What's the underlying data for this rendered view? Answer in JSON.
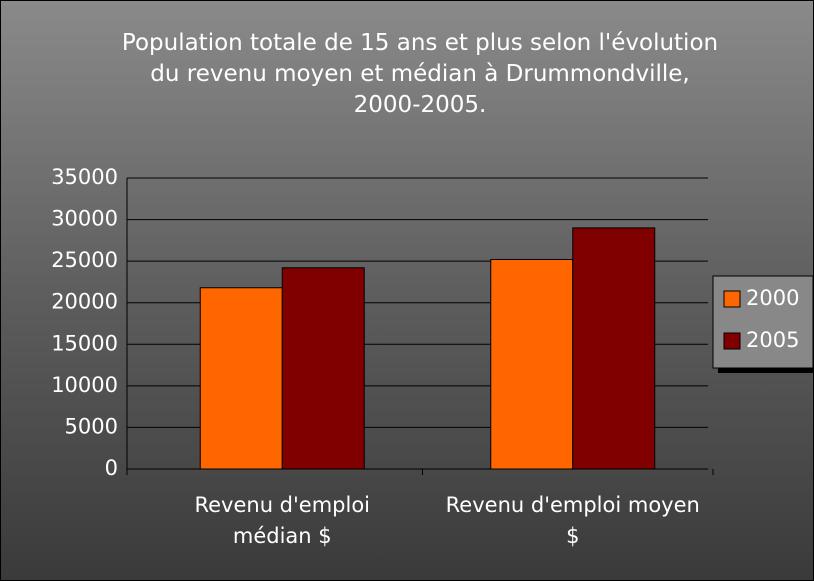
{
  "chart_data": {
    "type": "bar",
    "title": "Population totale de 15 ans et plus selon l'évolution du revenu moyen et médian à Drummondville, 2000-2005.",
    "categories": [
      "Revenu d'emploi médian $",
      "Revenu d'emploi moyen $"
    ],
    "series": [
      {
        "name": "2000",
        "color": "#ff6600",
        "values": [
          21800,
          25200
        ]
      },
      {
        "name": "2005",
        "color": "#800000",
        "values": [
          24200,
          29000
        ]
      }
    ],
    "ylim": [
      0,
      35000
    ],
    "yticks": [
      0,
      5000,
      10000,
      15000,
      20000,
      25000,
      30000,
      35000
    ],
    "grid": true,
    "legend": "right"
  }
}
